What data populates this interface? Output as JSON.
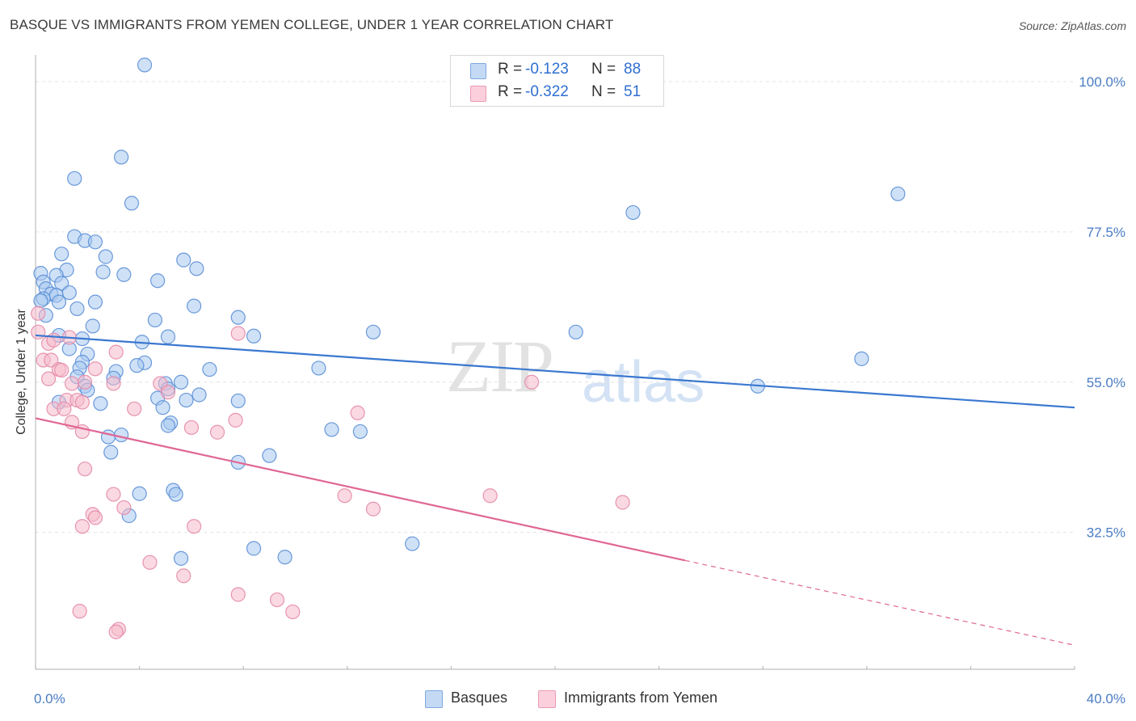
{
  "title": "BASQUE VS IMMIGRANTS FROM YEMEN COLLEGE, UNDER 1 YEAR CORRELATION CHART",
  "source": "Source: ZipAtlas.com",
  "watermark": {
    "part1": "ZIP",
    "part2": "atlas"
  },
  "legend": {
    "rows": [
      {
        "r_label": "R =",
        "r_value": "-0.123",
        "n_label": "N =",
        "n_value": "88",
        "color": "#a8c8f0"
      },
      {
        "r_label": "R =",
        "r_value": "-0.322",
        "n_label": "N =",
        "n_value": "51",
        "color": "#f6b9cb"
      }
    ]
  },
  "bottom_legend": [
    {
      "label": "Basques",
      "color": "#a8c8f0"
    },
    {
      "label": "Immigrants from Yemen",
      "color": "#f6b9cb"
    }
  ],
  "chart_data": {
    "type": "scatter",
    "title": "BASQUE VS IMMIGRANTS FROM YEMEN COLLEGE, UNDER 1 YEAR CORRELATION CHART",
    "xlabel": "",
    "ylabel": "College, Under 1 year",
    "xlim": [
      0,
      40
    ],
    "ylim": [
      12,
      104
    ],
    "x_tick_labels": [
      "0.0%",
      "40.0%"
    ],
    "y_ticks": [
      32.5,
      55.0,
      77.5,
      100.0
    ],
    "y_tick_labels": [
      "32.5%",
      "55.0%",
      "77.5%",
      "100.0%"
    ],
    "grid": true,
    "series": [
      {
        "name": "Basques",
        "color": "#5b8fd6",
        "fill": "#a8c8f0",
        "trend": {
          "x": [
            0,
            40
          ],
          "y": [
            62.0,
            51.2
          ],
          "color": "#3a78d0"
        },
        "points": [
          [
            4.2,
            102.5
          ],
          [
            3.3,
            88.7
          ],
          [
            1.5,
            85.5
          ],
          [
            3.7,
            81.8
          ],
          [
            23.0,
            80.4
          ],
          [
            33.2,
            83.2
          ],
          [
            1.5,
            76.8
          ],
          [
            1.9,
            76.2
          ],
          [
            2.3,
            76.0
          ],
          [
            1.0,
            74.2
          ],
          [
            2.7,
            73.8
          ],
          [
            2.6,
            71.5
          ],
          [
            5.7,
            73.3
          ],
          [
            6.2,
            72.0
          ],
          [
            1.2,
            71.8
          ],
          [
            0.8,
            71.0
          ],
          [
            3.4,
            71.1
          ],
          [
            0.2,
            71.3
          ],
          [
            0.3,
            70.0
          ],
          [
            1.0,
            69.8
          ],
          [
            4.7,
            70.2
          ],
          [
            0.4,
            69.0
          ],
          [
            0.6,
            68.2
          ],
          [
            0.8,
            68.0
          ],
          [
            1.3,
            68.4
          ],
          [
            0.3,
            67.5
          ],
          [
            0.9,
            67.0
          ],
          [
            0.2,
            67.2
          ],
          [
            2.3,
            67.0
          ],
          [
            1.6,
            66.0
          ],
          [
            6.1,
            66.4
          ],
          [
            0.4,
            65.0
          ],
          [
            7.8,
            64.7
          ],
          [
            4.6,
            64.3
          ],
          [
            2.2,
            63.4
          ],
          [
            0.9,
            62.0
          ],
          [
            5.1,
            61.8
          ],
          [
            8.4,
            61.9
          ],
          [
            13.0,
            62.5
          ],
          [
            20.8,
            62.5
          ],
          [
            4.1,
            61.0
          ],
          [
            1.8,
            61.5
          ],
          [
            1.3,
            60.0
          ],
          [
            2.0,
            59.2
          ],
          [
            1.8,
            58.0
          ],
          [
            4.2,
            57.9
          ],
          [
            3.9,
            57.5
          ],
          [
            1.7,
            57.1
          ],
          [
            6.7,
            56.9
          ],
          [
            10.9,
            57.1
          ],
          [
            31.8,
            58.5
          ],
          [
            3.1,
            56.6
          ],
          [
            1.6,
            55.8
          ],
          [
            3.0,
            55.6
          ],
          [
            5.6,
            55.0
          ],
          [
            5.0,
            54.8
          ],
          [
            1.9,
            54.4
          ],
          [
            5.1,
            54.0
          ],
          [
            27.8,
            54.4
          ],
          [
            2.0,
            53.8
          ],
          [
            6.3,
            53.1
          ],
          [
            4.7,
            52.6
          ],
          [
            5.8,
            52.3
          ],
          [
            7.8,
            52.2
          ],
          [
            2.5,
            51.8
          ],
          [
            0.9,
            52.0
          ],
          [
            4.9,
            51.2
          ],
          [
            5.2,
            48.9
          ],
          [
            5.1,
            48.5
          ],
          [
            11.4,
            47.9
          ],
          [
            12.5,
            47.6
          ],
          [
            2.8,
            46.8
          ],
          [
            3.3,
            47.1
          ],
          [
            2.9,
            44.5
          ],
          [
            9.0,
            44.0
          ],
          [
            7.8,
            43.0
          ],
          [
            5.3,
            38.8
          ],
          [
            5.4,
            38.2
          ],
          [
            4.0,
            38.3
          ],
          [
            3.6,
            35.0
          ],
          [
            14.5,
            30.8
          ],
          [
            8.4,
            30.1
          ],
          [
            9.6,
            28.8
          ],
          [
            5.6,
            28.6
          ]
        ]
      },
      {
        "name": "Immigrants from Yemen",
        "color": "#e48aa8",
        "fill": "#f6b9cb",
        "trend": {
          "x": [
            0,
            25
          ],
          "y": [
            49.6,
            28.3
          ],
          "dash_to": [
            40,
            15.6
          ],
          "color": "#e06794"
        },
        "points": [
          [
            0.1,
            65.3
          ],
          [
            0.1,
            62.5
          ],
          [
            0.5,
            60.8
          ],
          [
            0.7,
            61.3
          ],
          [
            1.3,
            61.7
          ],
          [
            7.8,
            62.3
          ],
          [
            3.1,
            59.5
          ],
          [
            0.3,
            58.3
          ],
          [
            0.6,
            58.3
          ],
          [
            0.9,
            56.9
          ],
          [
            2.3,
            57.0
          ],
          [
            1.0,
            56.8
          ],
          [
            0.5,
            55.5
          ],
          [
            1.4,
            54.8
          ],
          [
            3.0,
            54.8
          ],
          [
            1.9,
            55.0
          ],
          [
            4.8,
            54.8
          ],
          [
            5.1,
            53.5
          ],
          [
            19.1,
            55.0
          ],
          [
            1.2,
            52.3
          ],
          [
            1.6,
            52.3
          ],
          [
            1.8,
            52.0
          ],
          [
            0.7,
            51.0
          ],
          [
            1.1,
            51.0
          ],
          [
            3.8,
            51.0
          ],
          [
            12.4,
            50.4
          ],
          [
            1.4,
            49.0
          ],
          [
            7.7,
            49.3
          ],
          [
            6.0,
            48.2
          ],
          [
            1.8,
            47.6
          ],
          [
            7.0,
            47.5
          ],
          [
            1.9,
            42.0
          ],
          [
            3.0,
            38.2
          ],
          [
            11.9,
            38.0
          ],
          [
            17.5,
            38.0
          ],
          [
            22.6,
            37.0
          ],
          [
            3.4,
            36.2
          ],
          [
            13.0,
            36.0
          ],
          [
            2.2,
            35.2
          ],
          [
            2.3,
            34.7
          ],
          [
            1.8,
            33.4
          ],
          [
            6.1,
            33.4
          ],
          [
            4.4,
            28.0
          ],
          [
            5.7,
            26.0
          ],
          [
            7.8,
            23.2
          ],
          [
            9.3,
            22.4
          ],
          [
            1.7,
            20.7
          ],
          [
            9.9,
            20.6
          ],
          [
            3.2,
            18.0
          ],
          [
            3.1,
            17.6
          ]
        ]
      }
    ]
  }
}
